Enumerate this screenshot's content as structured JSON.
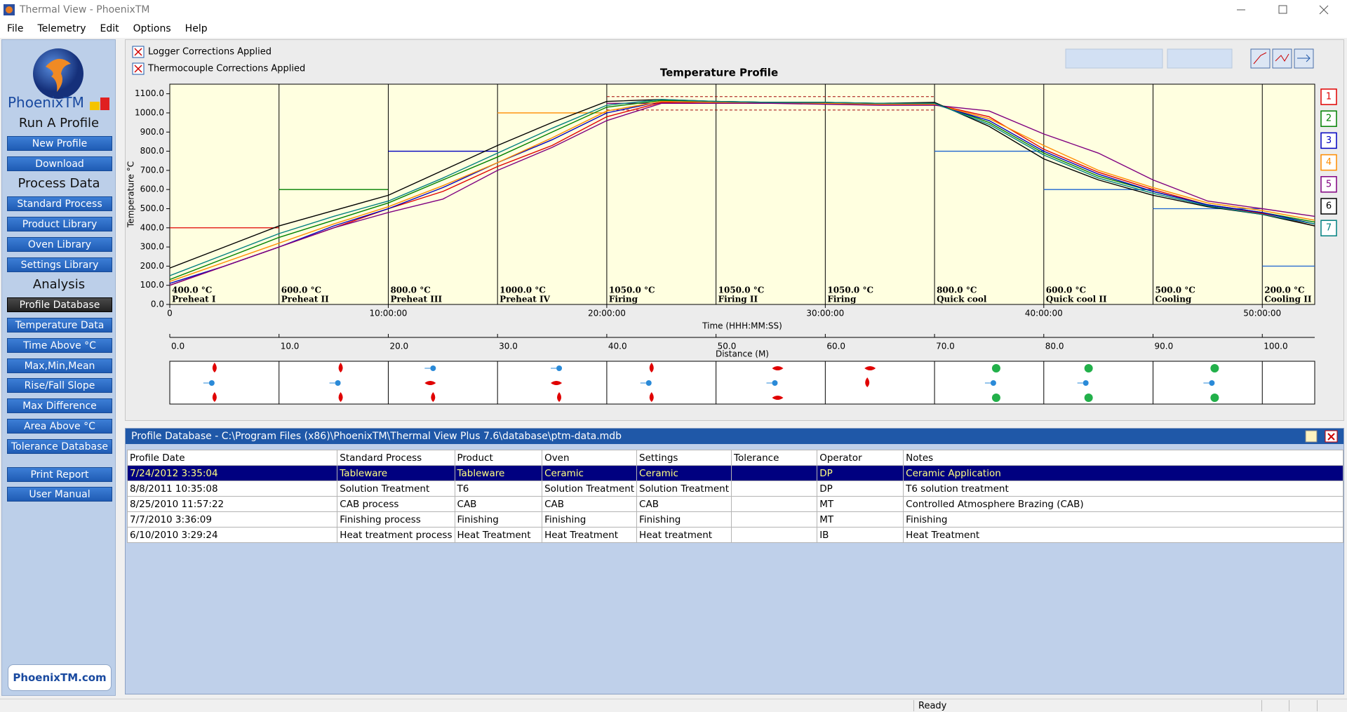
{
  "window": {
    "title": "Thermal View - PhoenixTM"
  },
  "menu": [
    "File",
    "Telemetry",
    "Edit",
    "Options",
    "Help"
  ],
  "sidebar": {
    "logo_text": "PhoenixTM",
    "groups": [
      {
        "heading": "Run A Profile",
        "buttons": [
          "New Profile",
          "Download"
        ]
      },
      {
        "heading": "Process Data",
        "buttons": [
          "Standard Process",
          "Product Library",
          "Oven Library",
          "Settings Library"
        ]
      },
      {
        "heading": "Analysis",
        "buttons": [
          "Profile Database",
          "Temperature Data",
          "Time Above °C",
          "Max,Min,Mean",
          "Rise/Fall Slope",
          "Max Difference",
          "Area Above °C",
          "Tolerance Database"
        ]
      }
    ],
    "active": {
      "group": 2,
      "button": 0
    },
    "extra_buttons": [
      "Print Report",
      "User Manual"
    ],
    "footer": "PhoenixTM.com"
  },
  "checkboxes": [
    "Logger Corrections Applied",
    "Thermocouple Corrections Applied"
  ],
  "chart_data": {
    "type": "line",
    "title": "Temperature Profile",
    "y_label": "Temperature °C",
    "x_label": "Time (HHH:MM:SS)",
    "xlim": [
      0,
      52.4
    ],
    "xticks": [
      0,
      {
        "value": 10,
        "label": "10:00:00"
      },
      {
        "value": 20,
        "label": "20:00:00"
      },
      {
        "value": 30,
        "label": "30:00:00"
      },
      {
        "value": 40,
        "label": "40:00:00"
      },
      {
        "value": 50,
        "label": "50:00:00"
      }
    ],
    "ylim": [
      0,
      1150
    ],
    "yticks": [
      {
        "value": 0,
        "label": "0.0"
      },
      {
        "value": 100,
        "label": "100.0"
      },
      {
        "value": 200,
        "label": "200.0"
      },
      {
        "value": 300,
        "label": "300.0"
      },
      {
        "value": 400,
        "label": "400.0"
      },
      {
        "value": 500,
        "label": "500.0"
      },
      {
        "value": 600,
        "label": "600.0"
      },
      {
        "value": 700,
        "label": "700.0"
      },
      {
        "value": 800,
        "label": "800.0"
      },
      {
        "value": 900,
        "label": "900.0"
      },
      {
        "value": 1000,
        "label": "1000.0"
      },
      {
        "value": 1100,
        "label": "1100.0"
      }
    ],
    "zones": [
      {
        "start": 0,
        "setpoint": 400,
        "label": "400.0 °C",
        "name": "Preheat I",
        "color": "#e00000"
      },
      {
        "start": 5,
        "setpoint": 600,
        "label": "600.0 °C",
        "name": "Preheat II",
        "color": "#008000"
      },
      {
        "start": 10,
        "setpoint": 800,
        "label": "800.0 °C",
        "name": "Preheat III",
        "color": "#0000c0"
      },
      {
        "start": 15,
        "setpoint": 1000,
        "label": "1000.0 °C",
        "name": "Preheat IV",
        "color": "#ff8c00"
      },
      {
        "start": 20,
        "setpoint": 1050,
        "label": "1050.0 °C",
        "name": "Firing",
        "color": "#800080"
      },
      {
        "start": 25,
        "setpoint": 1050,
        "label": "1050.0 °C",
        "name": "Firing II",
        "color": "#800080"
      },
      {
        "start": 30,
        "setpoint": 1050,
        "label": "1050.0 °C",
        "name": "Firing",
        "color": "#800080"
      },
      {
        "start": 35,
        "setpoint": 800,
        "label": "800.0 °C",
        "name": "Quick cool",
        "color": "#1e64d0"
      },
      {
        "start": 40,
        "setpoint": 600,
        "label": "600.0 °C",
        "name": "Quick cool II",
        "color": "#1e64d0"
      },
      {
        "start": 45,
        "setpoint": 500,
        "label": "500.0 °C",
        "name": "Cooling",
        "color": "#1e64d0"
      },
      {
        "start": 50,
        "setpoint": 200,
        "label": "200.0 °C",
        "name": "Cooling II",
        "color": "#1e64d0"
      }
    ],
    "tolerance": {
      "low": 1015,
      "high": 1085,
      "color": "#a00000"
    },
    "distance_axis": {
      "label": "Distance (M)",
      "lim": [
        0,
        104.8
      ],
      "ticks": [
        {
          "value": 0,
          "label": "0.0"
        },
        {
          "value": 10,
          "label": "10.0"
        },
        {
          "value": 20,
          "label": "20.0"
        },
        {
          "value": 30,
          "label": "30.0"
        },
        {
          "value": 40,
          "label": "40.0"
        },
        {
          "value": 50,
          "label": "50.0"
        },
        {
          "value": 60,
          "label": "60.0"
        },
        {
          "value": 70,
          "label": "70.0"
        },
        {
          "value": 80,
          "label": "80.0"
        },
        {
          "value": 90,
          "label": "90.0"
        },
        {
          "value": 100,
          "label": "100.0"
        }
      ]
    },
    "x": [
      0,
      2.5,
      5,
      7.5,
      10,
      12.5,
      15,
      17.5,
      20,
      22.5,
      25,
      27.5,
      30,
      32.5,
      35,
      37.5,
      40,
      42.5,
      45,
      47.5,
      50,
      52.4
    ],
    "series": [
      {
        "name": "1",
        "color": "#e00000",
        "values": [
          100,
          200,
          300,
          400,
          500,
          590,
          720,
          830,
          980,
          1055,
          1050,
          1050,
          1050,
          1045,
          1045,
          980,
          810,
          690,
          600,
          520,
          475,
          410
        ]
      },
      {
        "name": "2",
        "color": "#008000",
        "values": [
          130,
          240,
          350,
          440,
          530,
          650,
          770,
          900,
          1030,
          1065,
          1060,
          1055,
          1055,
          1050,
          1050,
          950,
          790,
          670,
          590,
          520,
          480,
          430
        ]
      },
      {
        "name": "3",
        "color": "#0000c0",
        "values": [
          110,
          200,
          300,
          410,
          500,
          610,
          740,
          860,
          1000,
          1060,
          1055,
          1050,
          1050,
          1045,
          1045,
          960,
          800,
          680,
          590,
          520,
          480,
          420
        ]
      },
      {
        "name": "4",
        "color": "#ff8c00",
        "values": [
          120,
          220,
          320,
          420,
          510,
          620,
          740,
          870,
          1010,
          1060,
          1055,
          1050,
          1050,
          1045,
          1045,
          970,
          830,
          700,
          610,
          530,
          490,
          440
        ]
      },
      {
        "name": "5",
        "color": "#800080",
        "values": [
          100,
          200,
          300,
          400,
          480,
          550,
          700,
          820,
          960,
          1050,
          1050,
          1050,
          1045,
          1040,
          1040,
          1010,
          890,
          790,
          650,
          540,
          500,
          460
        ]
      },
      {
        "name": "6",
        "color": "#000000",
        "values": [
          190,
          300,
          410,
          490,
          570,
          700,
          830,
          950,
          1060,
          1070,
          1060,
          1055,
          1055,
          1050,
          1055,
          930,
          760,
          650,
          570,
          510,
          470,
          410
        ]
      },
      {
        "name": "7",
        "color": "#008080",
        "values": [
          150,
          260,
          370,
          460,
          540,
          660,
          790,
          920,
          1040,
          1070,
          1060,
          1055,
          1055,
          1050,
          1050,
          940,
          780,
          660,
          580,
          515,
          470,
          420
        ]
      }
    ]
  },
  "table": {
    "title": "Profile Database - C:\\Program Files (x86)\\PhoenixTM\\Thermal View Plus 7.6\\database\\ptm-data.mdb",
    "columns": [
      "Profile Date",
      "Standard Process",
      "Product",
      "Oven",
      "Settings",
      "Tolerance",
      "Operator",
      "Notes"
    ],
    "selected_row": 0,
    "rows": [
      [
        "7/24/2012 3:35:04",
        "Tableware",
        "Tableware",
        "Ceramic",
        "Ceramic",
        null,
        "DP",
        "Ceramic Application"
      ],
      [
        "8/8/2011 10:35:08",
        "Solution Treatment",
        "T6",
        "Solution Treatment",
        "Solution Treatment",
        null,
        "DP",
        "T6 solution treatment"
      ],
      [
        "8/25/2010 11:57:22",
        "CAB process",
        "CAB",
        "CAB",
        "CAB",
        null,
        "MT",
        "Controlled Atmosphere Brazing (CAB)"
      ],
      [
        "7/7/2010 3:36:09",
        "Finishing process",
        "Finishing",
        "Finishing",
        "Finishing",
        null,
        "MT",
        "Finishing"
      ],
      [
        "6/10/2010 3:29:24",
        "Heat treatment process",
        "Heat Treatment",
        "Heat Treatment",
        "Heat treatment",
        null,
        "IB",
        "Heat Treatment"
      ]
    ]
  },
  "status": "Ready"
}
